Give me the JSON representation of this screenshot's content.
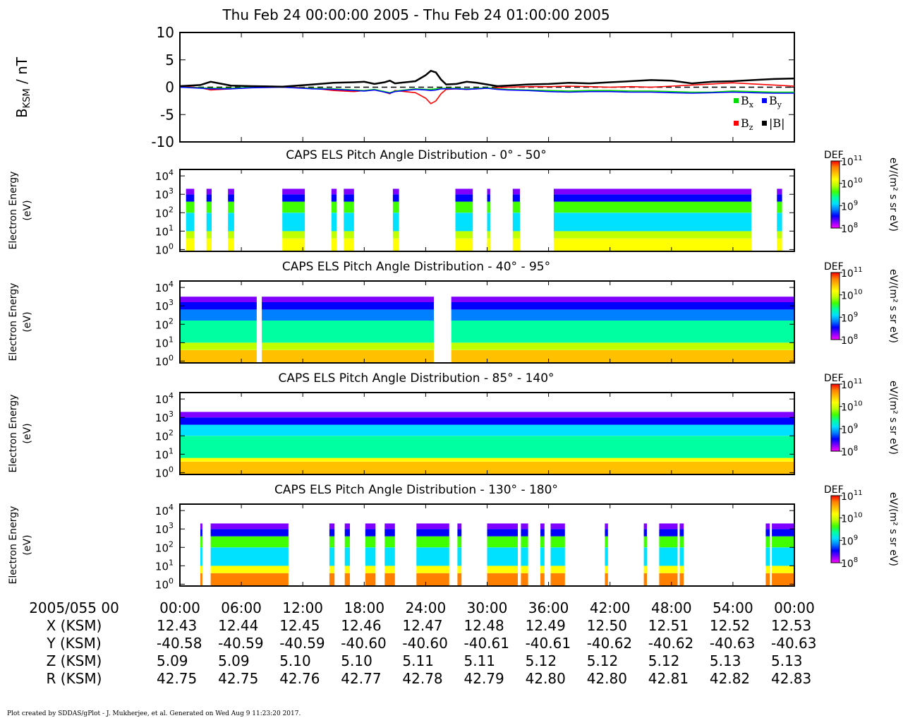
{
  "title": "Thu Feb 24 00:00:00 2005 - Thu Feb 24 01:00:00 2005",
  "footer": "Plot created by SDDAS/gPlot - J. Mukherjee, et al.  Generated on Wed Aug 9 11:23:20 2017.",
  "colors": {
    "bx": "#00dd00",
    "by": "#0000ff",
    "bz": "#ff0000",
    "bmag": "#000000",
    "colormap": [
      "#ff00ff",
      "#8000ff",
      "#0000ff",
      "#0080ff",
      "#00e0ff",
      "#00ffa0",
      "#40ff00",
      "#c0ff00",
      "#ffff00",
      "#ffc000",
      "#ff8000",
      "#ff0000"
    ]
  },
  "chart_data": [
    {
      "type": "line",
      "ylabel": "B",
      "ylabel_sub": "KSM",
      "ylabel_unit": " / nT",
      "ylim": [
        -10,
        10
      ],
      "y_ticks": [
        10,
        5,
        0,
        -5,
        -10
      ],
      "x_range_min": [
        0,
        60
      ],
      "grid": false,
      "legend_placement": "bottom-right",
      "legend": [
        {
          "sym": "B",
          "sub": "x",
          "color": "#00dd00"
        },
        {
          "sym": "B",
          "sub": "y",
          "color": "#0000ff"
        },
        {
          "sym": "B",
          "sub": "z",
          "color": "#ff0000"
        },
        {
          "sym": "|B|",
          "sub": "",
          "color": "#000000"
        }
      ],
      "x": [
        0,
        2,
        3,
        5,
        7,
        10,
        13,
        15,
        17,
        18,
        19,
        20,
        20.5,
        21,
        23,
        24,
        24.5,
        25,
        25.5,
        26,
        27,
        28,
        29,
        30,
        31,
        32,
        34,
        36,
        38,
        40,
        42,
        44,
        46,
        48,
        50,
        52,
        54,
        56,
        58,
        60
      ],
      "series": [
        {
          "name": "Bx",
          "color": "#00dd00",
          "values": [
            0,
            -0.1,
            -0.2,
            -0.2,
            0,
            0,
            -0.2,
            -0.3,
            -0.5,
            -0.6,
            -0.4,
            -0.8,
            -1.0,
            -0.7,
            -0.3,
            -0.4,
            -0.4,
            -0.3,
            -0.2,
            -0.2,
            -0.2,
            -0.3,
            -0.2,
            -0.1,
            -0.3,
            -0.4,
            -0.5,
            -0.6,
            -0.7,
            -0.6,
            -0.6,
            -0.7,
            -0.7,
            -0.8,
            -0.9,
            -0.9,
            -0.7,
            -0.8,
            -0.9,
            -0.9
          ]
        },
        {
          "name": "By",
          "color": "#0000ff",
          "values": [
            0,
            -0.2,
            -0.3,
            -0.3,
            -0.1,
            0,
            -0.3,
            -0.4,
            -0.6,
            -0.7,
            -0.5,
            -0.9,
            -1.1,
            -0.8,
            -0.4,
            -0.5,
            -0.6,
            -0.5,
            -0.3,
            -0.3,
            -0.3,
            -0.4,
            -0.3,
            -0.2,
            -0.4,
            -0.5,
            -0.6,
            -0.8,
            -0.9,
            -0.8,
            -0.8,
            -0.9,
            -0.9,
            -1.0,
            -1.1,
            -1.0,
            -0.9,
            -1.0,
            -1.1,
            -1.1
          ]
        },
        {
          "name": "Bz",
          "color": "#ff0000",
          "values": [
            0.2,
            -0.1,
            -0.5,
            -0.3,
            0,
            0.1,
            -0.2,
            -0.6,
            -0.8,
            -0.6,
            -0.5,
            -0.9,
            -1.2,
            -0.6,
            -1.0,
            -2.0,
            -3.0,
            -2.5,
            -1.2,
            -0.4,
            -0.3,
            -0.4,
            -0.3,
            -0.2,
            -0.1,
            0.0,
            0.1,
            0.1,
            0.2,
            0.1,
            0.0,
            0.1,
            0.0,
            0.2,
            0.4,
            0.6,
            0.8,
            0.6,
            0.4,
            0.2
          ]
        },
        {
          "name": "|B|",
          "color": "#000000",
          "values": [
            0.2,
            0.4,
            1.0,
            0.3,
            0.2,
            0.1,
            0.5,
            0.8,
            0.9,
            1.0,
            0.6,
            0.9,
            1.2,
            0.7,
            1.1,
            2.2,
            3.0,
            2.7,
            1.4,
            0.5,
            0.6,
            1.0,
            0.8,
            0.5,
            0.2,
            0.3,
            0.5,
            0.6,
            0.8,
            0.7,
            0.9,
            1.1,
            1.3,
            1.2,
            0.7,
            1.0,
            1.1,
            1.3,
            1.5,
            1.6
          ]
        }
      ]
    },
    {
      "type": "heatmap",
      "title": "CAPS ELS Pitch Angle Distribution - 0° - 50°",
      "ylabel": [
        "Electron Energy",
        "(eV)"
      ],
      "y_ticks_exp": [
        0,
        1,
        2,
        3,
        4
      ],
      "colorbar": {
        "label": "DEF",
        "unit": "eV/(m² s sr eV)",
        "range_exp": [
          8,
          11
        ],
        "ticks_exp": [
          11,
          10,
          9,
          8
        ]
      },
      "x_range_min": [
        0,
        60
      ],
      "segments_min": [
        [
          0.6,
          1.4
        ],
        [
          2.6,
          3.1
        ],
        [
          4.7,
          5.3
        ],
        [
          10.0,
          12.2
        ],
        [
          14.8,
          15.3
        ],
        [
          16.0,
          17.0
        ],
        [
          20.8,
          21.4
        ],
        [
          26.9,
          28.6
        ],
        [
          30.0,
          30.3
        ],
        [
          32.5,
          33.2
        ],
        [
          36.5,
          55.8
        ],
        [
          58.3,
          58.8
        ]
      ],
      "level_by_energy": [
        {
          "e_max": 0.6,
          "color": "#ffff00"
        },
        {
          "e_max": 1.0,
          "color": "#c0ff00"
        },
        {
          "e_max": 2.0,
          "color": "#00e0ff"
        },
        {
          "e_max": 2.6,
          "color": "#40ff00"
        },
        {
          "e_max": 3.0,
          "color": "#0000ff"
        },
        {
          "e_max": 3.3,
          "color": "#8000ff"
        }
      ]
    },
    {
      "type": "heatmap",
      "title": "CAPS ELS Pitch Angle Distribution - 40° - 95°",
      "ylabel": [
        "Electron Energy",
        "(eV)"
      ],
      "y_ticks_exp": [
        0,
        1,
        2,
        3,
        4
      ],
      "colorbar": {
        "label": "DEF",
        "unit": "eV/(m² s sr eV)",
        "range_exp": [
          8,
          11
        ],
        "ticks_exp": [
          11,
          10,
          9,
          8
        ]
      },
      "x_range_min": [
        0,
        60
      ],
      "segments_min": [
        [
          0.0,
          7.5
        ],
        [
          8.0,
          24.8
        ],
        [
          26.5,
          60.0
        ]
      ],
      "level_by_energy": [
        {
          "e_max": 0.6,
          "color": "#ffc000"
        },
        {
          "e_max": 1.0,
          "color": "#c0ff00"
        },
        {
          "e_max": 2.2,
          "color": "#00ffa0"
        },
        {
          "e_max": 2.8,
          "color": "#0080ff"
        },
        {
          "e_max": 3.2,
          "color": "#0000ff"
        },
        {
          "e_max": 3.5,
          "color": "#8000ff"
        }
      ]
    },
    {
      "type": "heatmap",
      "title": "CAPS ELS Pitch Angle Distribution - 85° - 140°",
      "ylabel": [
        "Electron Energy",
        "(eV)"
      ],
      "y_ticks_exp": [
        0,
        1,
        2,
        3,
        4
      ],
      "colorbar": {
        "label": "DEF",
        "unit": "eV/(m² s sr eV)",
        "range_exp": [
          8,
          11
        ],
        "ticks_exp": [
          11,
          10,
          9,
          8
        ]
      },
      "x_range_min": [
        0,
        60
      ],
      "segments_min": [
        [
          0.0,
          60.0
        ]
      ],
      "level_by_energy": [
        {
          "e_max": 0.6,
          "color": "#ffc000"
        },
        {
          "e_max": 0.8,
          "color": "#ffff00"
        },
        {
          "e_max": 2.0,
          "color": "#00ffa0"
        },
        {
          "e_max": 2.6,
          "color": "#00e0ff"
        },
        {
          "e_max": 3.0,
          "color": "#0000ff"
        },
        {
          "e_max": 3.3,
          "color": "#8000ff"
        }
      ]
    },
    {
      "type": "heatmap",
      "title": "CAPS ELS Pitch Angle Distribution - 130° - 180°",
      "ylabel": [
        "Electron Energy",
        "(eV)"
      ],
      "y_ticks_exp": [
        0,
        1,
        2,
        3,
        4
      ],
      "colorbar": {
        "label": "DEF",
        "unit": "eV/(m² s sr eV)",
        "range_exp": [
          8,
          11
        ],
        "ticks_exp": [
          11,
          10,
          9,
          8
        ]
      },
      "x_range_min": [
        0,
        60
      ],
      "segments_min": [
        [
          2.0,
          2.2
        ],
        [
          3.0,
          10.6
        ],
        [
          14.6,
          15.1
        ],
        [
          16.1,
          16.6
        ],
        [
          18.1,
          19.1
        ],
        [
          20.0,
          21.0
        ],
        [
          23.1,
          26.3
        ],
        [
          27.1,
          27.5
        ],
        [
          30.0,
          33.0
        ],
        [
          33.3,
          34.0
        ],
        [
          35.2,
          35.6
        ],
        [
          36.2,
          37.6
        ],
        [
          41.5,
          41.8
        ],
        [
          45.3,
          45.6
        ],
        [
          46.8,
          48.6
        ],
        [
          48.8,
          49.2
        ],
        [
          57.2,
          57.6
        ],
        [
          57.8,
          60.0
        ]
      ],
      "level_by_energy": [
        {
          "e_max": 0.6,
          "color": "#ff8000"
        },
        {
          "e_max": 1.0,
          "color": "#ffff00"
        },
        {
          "e_max": 2.0,
          "color": "#00e0ff"
        },
        {
          "e_max": 2.6,
          "color": "#40ff00"
        },
        {
          "e_max": 3.0,
          "color": "#0000ff"
        },
        {
          "e_max": 3.3,
          "color": "#8000ff"
        }
      ]
    }
  ],
  "time_axis": {
    "label": "2005/055 00",
    "ticks_min": [
      0,
      6,
      12,
      18,
      24,
      30,
      36,
      42,
      48,
      54,
      60
    ],
    "ticks": [
      "00:00",
      "06:00",
      "12:00",
      "18:00",
      "24:00",
      "30:00",
      "36:00",
      "42:00",
      "48:00",
      "54:00",
      "00:00"
    ]
  },
  "ephemeris": [
    {
      "label": "X (KSM)",
      "values": [
        "12.43",
        "12.44",
        "12.45",
        "12.46",
        "12.47",
        "12.48",
        "12.49",
        "12.50",
        "12.51",
        "12.52",
        "12.53"
      ]
    },
    {
      "label": "Y (KSM)",
      "values": [
        "-40.58",
        "-40.59",
        "-40.59",
        "-40.60",
        "-40.60",
        "-40.61",
        "-40.61",
        "-40.62",
        "-40.62",
        "-40.63",
        "-40.63"
      ]
    },
    {
      "label": "Z (KSM)",
      "values": [
        "5.09",
        "5.09",
        "5.10",
        "5.10",
        "5.11",
        "5.11",
        "5.12",
        "5.12",
        "5.12",
        "5.13",
        "5.13"
      ]
    },
    {
      "label": "R (KSM)",
      "values": [
        "42.75",
        "42.75",
        "42.76",
        "42.77",
        "42.78",
        "42.79",
        "42.80",
        "42.80",
        "42.81",
        "42.82",
        "42.83"
      ]
    }
  ]
}
